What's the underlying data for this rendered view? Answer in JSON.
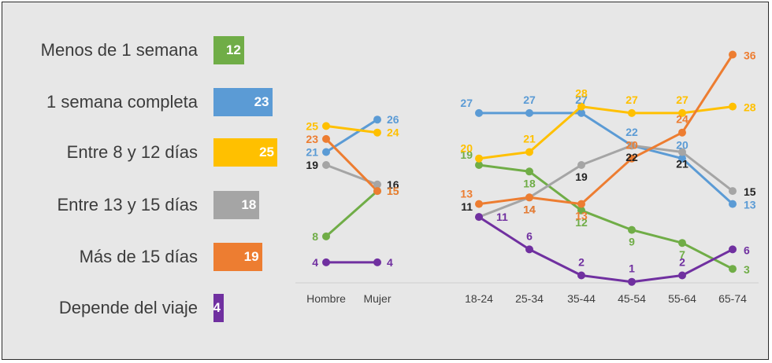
{
  "chart_data": {
    "type": "line",
    "title": "",
    "series": [
      {
        "name": "Menos de 1 semana",
        "color": "#70ad47",
        "total": 12,
        "gender": [
          8,
          15
        ],
        "age": [
          19,
          18,
          12,
          9,
          7,
          3
        ]
      },
      {
        "name": "1 semana completa",
        "color": "#5b9bd5",
        "total": 23,
        "gender": [
          21,
          26
        ],
        "age": [
          27,
          27,
          27,
          22,
          20,
          13
        ]
      },
      {
        "name": "Entre 8 y 12 días",
        "color": "#ffc000",
        "total": 25,
        "gender": [
          25,
          24
        ],
        "age": [
          20,
          21,
          28,
          27,
          27,
          28
        ]
      },
      {
        "name": "Entre 13 y 15 días",
        "color": "#a5a5a5",
        "total": 18,
        "gender": [
          19,
          16
        ],
        "age": [
          11,
          14,
          19,
          22,
          21,
          15
        ]
      },
      {
        "name": "Más de 15 días",
        "color": "#ed7d31",
        "total": 19,
        "gender": [
          23,
          15
        ],
        "age": [
          13,
          14,
          13,
          20,
          24,
          36
        ]
      },
      {
        "name": "Depende del viaje",
        "color": "#7030a0",
        "total": 4,
        "gender": [
          4,
          4
        ],
        "age": [
          11,
          6,
          2,
          1,
          2,
          6
        ]
      }
    ],
    "gender_categories": [
      "Hombre",
      "Mujer"
    ],
    "age_categories": [
      "18-24",
      "25-34",
      "35-44",
      "45-54",
      "55-64",
      "65-74"
    ],
    "ylim": [
      0,
      38
    ]
  }
}
